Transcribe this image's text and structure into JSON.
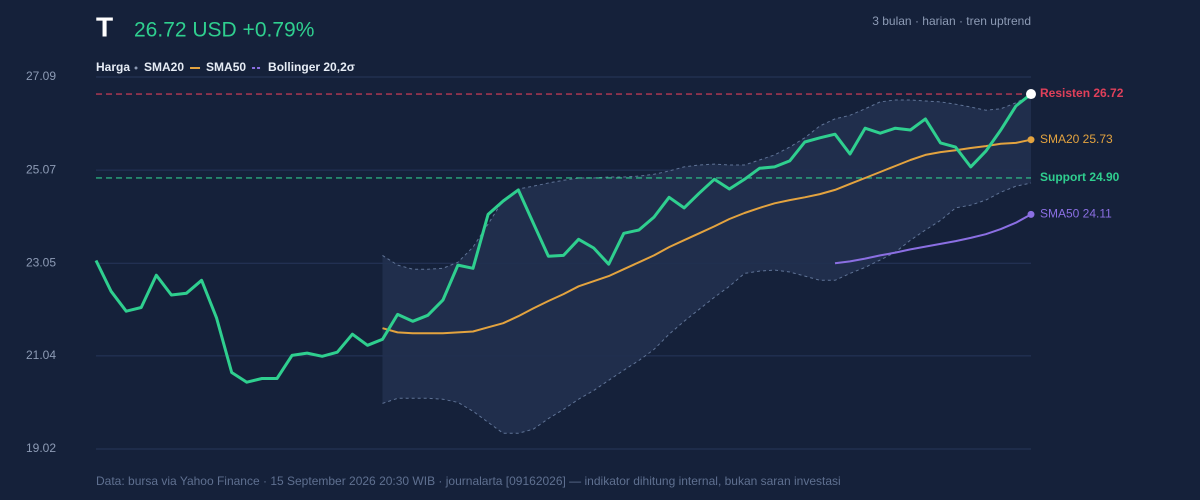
{
  "chart_data": {
    "type": "line",
    "title": "T",
    "subtitle": "26.72 USD +0.79%",
    "note": "3 bulan · harian · tren uptrend",
    "source": "Data: bursa via Yahoo Finance · 15 September 2026 20:30 WIB · journalarta [09162026] — indikator dihitung internal, bukan saran investasi",
    "ylim": [
      19.02,
      27.09
    ],
    "yticks": [
      19.02,
      21.04,
      23.05,
      25.07,
      27.09
    ],
    "grid": true,
    "series": [
      {
        "name": "Harga",
        "color": "#2fcf8f",
        "values": [
          23.11,
          22.44,
          22.01,
          22.09,
          22.79,
          22.36,
          22.4,
          22.68,
          21.86,
          20.68,
          20.47,
          20.55,
          20.55,
          21.05,
          21.1,
          21.03,
          21.12,
          21.51,
          21.27,
          21.4,
          21.94,
          21.79,
          21.92,
          22.25,
          23.01,
          22.94,
          24.11,
          24.4,
          24.64,
          23.92,
          23.2,
          23.22,
          23.57,
          23.38,
          23.03,
          23.7,
          23.77,
          24.05,
          24.48,
          24.25,
          24.57,
          24.87,
          24.66,
          24.87,
          25.11,
          25.14,
          25.27,
          25.68,
          25.77,
          25.85,
          25.42,
          25.98,
          25.87,
          25.98,
          25.94,
          26.18,
          25.66,
          25.57,
          25.14,
          25.48,
          25.94,
          26.46,
          26.72
        ]
      },
      {
        "name": "SMA20",
        "color": "#e3a33f",
        "end_label": "SMA20 25.73",
        "values": [
          null,
          null,
          null,
          null,
          null,
          null,
          null,
          null,
          null,
          null,
          null,
          null,
          null,
          null,
          null,
          null,
          null,
          null,
          null,
          21.64,
          21.55,
          21.53,
          21.53,
          21.53,
          21.55,
          21.57,
          21.66,
          21.75,
          21.9,
          22.07,
          22.23,
          22.38,
          22.55,
          22.66,
          22.77,
          22.92,
          23.07,
          23.22,
          23.4,
          23.55,
          23.7,
          23.85,
          24.01,
          24.14,
          24.25,
          24.35,
          24.42,
          24.48,
          24.55,
          24.64,
          24.77,
          24.9,
          25.03,
          25.16,
          25.29,
          25.4,
          25.46,
          25.5,
          25.55,
          25.59,
          25.64,
          25.66,
          25.73
        ]
      },
      {
        "name": "SMA50",
        "color": "#8b6fe3",
        "end_label": "SMA50 24.11",
        "values": [
          null,
          null,
          null,
          null,
          null,
          null,
          null,
          null,
          null,
          null,
          null,
          null,
          null,
          null,
          null,
          null,
          null,
          null,
          null,
          null,
          null,
          null,
          null,
          null,
          null,
          null,
          null,
          null,
          null,
          null,
          null,
          null,
          null,
          null,
          null,
          null,
          null,
          null,
          null,
          null,
          null,
          null,
          null,
          null,
          null,
          null,
          null,
          null,
          null,
          23.05,
          23.09,
          23.15,
          23.22,
          23.28,
          23.35,
          23.41,
          23.47,
          23.53,
          23.6,
          23.68,
          23.79,
          23.93,
          24.11
        ]
      }
    ],
    "bands": {
      "name": "Bollinger 20,2σ",
      "color": "#5f7396",
      "upper": [
        null,
        null,
        null,
        null,
        null,
        null,
        null,
        null,
        null,
        null,
        null,
        null,
        null,
        null,
        null,
        null,
        null,
        null,
        null,
        23.22,
        23.01,
        22.92,
        22.92,
        22.94,
        23.07,
        23.4,
        23.9,
        24.42,
        24.66,
        24.72,
        24.79,
        24.85,
        24.9,
        24.9,
        24.92,
        24.92,
        24.94,
        24.98,
        25.05,
        25.14,
        25.18,
        25.2,
        25.18,
        25.18,
        25.29,
        25.4,
        25.57,
        25.77,
        26.03,
        26.18,
        26.26,
        26.4,
        26.55,
        26.59,
        26.59,
        26.57,
        26.55,
        26.5,
        26.44,
        26.37,
        26.4,
        26.53,
        26.7
      ],
      "lower": [
        null,
        null,
        null,
        null,
        null,
        null,
        null,
        null,
        null,
        null,
        null,
        null,
        null,
        null,
        null,
        null,
        null,
        null,
        null,
        20.01,
        20.12,
        20.12,
        20.12,
        20.1,
        20.03,
        19.84,
        19.6,
        19.36,
        19.36,
        19.45,
        19.68,
        19.88,
        20.1,
        20.29,
        20.51,
        20.73,
        20.94,
        21.18,
        21.51,
        21.79,
        22.05,
        22.31,
        22.55,
        22.83,
        22.88,
        22.9,
        22.86,
        22.77,
        22.68,
        22.68,
        22.83,
        22.96,
        23.12,
        23.29,
        23.55,
        23.77,
        23.98,
        24.25,
        24.31,
        24.42,
        24.59,
        24.72,
        24.79
      ]
    },
    "levels": [
      {
        "label": "Resisten 26.72",
        "value": 26.72,
        "color": "#e0405a"
      },
      {
        "label": "Support 24.90",
        "value": 24.9,
        "color": "#2fcf8f"
      }
    ]
  }
}
